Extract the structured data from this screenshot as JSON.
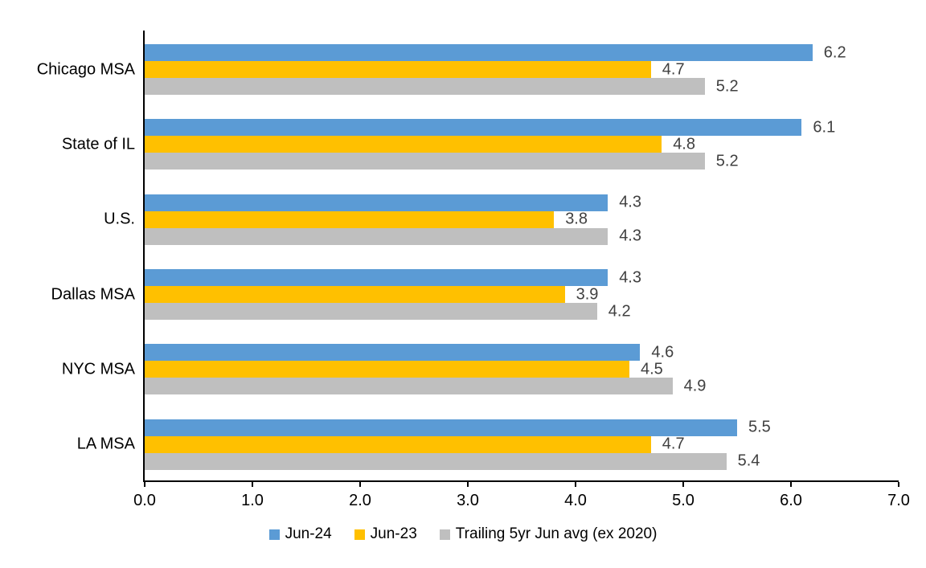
{
  "chart_data": {
    "type": "bar",
    "orientation": "horizontal",
    "title": "",
    "categories": [
      "Chicago MSA",
      "State of IL",
      "U.S.",
      "Dallas MSA",
      "NYC MSA",
      "LA MSA"
    ],
    "series": [
      {
        "name": "Jun-24",
        "color": "#5B9BD5",
        "values": [
          6.2,
          6.1,
          4.3,
          4.3,
          4.6,
          5.5
        ]
      },
      {
        "name": "Jun-23",
        "color": "#FFC000",
        "values": [
          4.7,
          4.8,
          3.8,
          3.9,
          4.5,
          4.7
        ]
      },
      {
        "name": "Trailing 5yr Jun avg (ex 2020)",
        "color": "#BFBFBF",
        "values": [
          5.2,
          5.2,
          4.3,
          4.2,
          4.9,
          5.4
        ]
      }
    ],
    "xlim": [
      0,
      7
    ],
    "x_ticks": [
      "0.0",
      "1.0",
      "2.0",
      "3.0",
      "4.0",
      "5.0",
      "6.0",
      "7.0"
    ],
    "grid": false,
    "legend_position": "bottom",
    "value_labels_shown": true
  },
  "colors": {
    "background": "#FFFFFF",
    "axis": "#000000",
    "category_text": "#000000",
    "tick_text": "#000000",
    "value_label_text": "#404040",
    "series_jun24": "#5B9BD5",
    "series_jun23": "#FFC000",
    "series_trailing_avg": "#BFBFBF"
  }
}
